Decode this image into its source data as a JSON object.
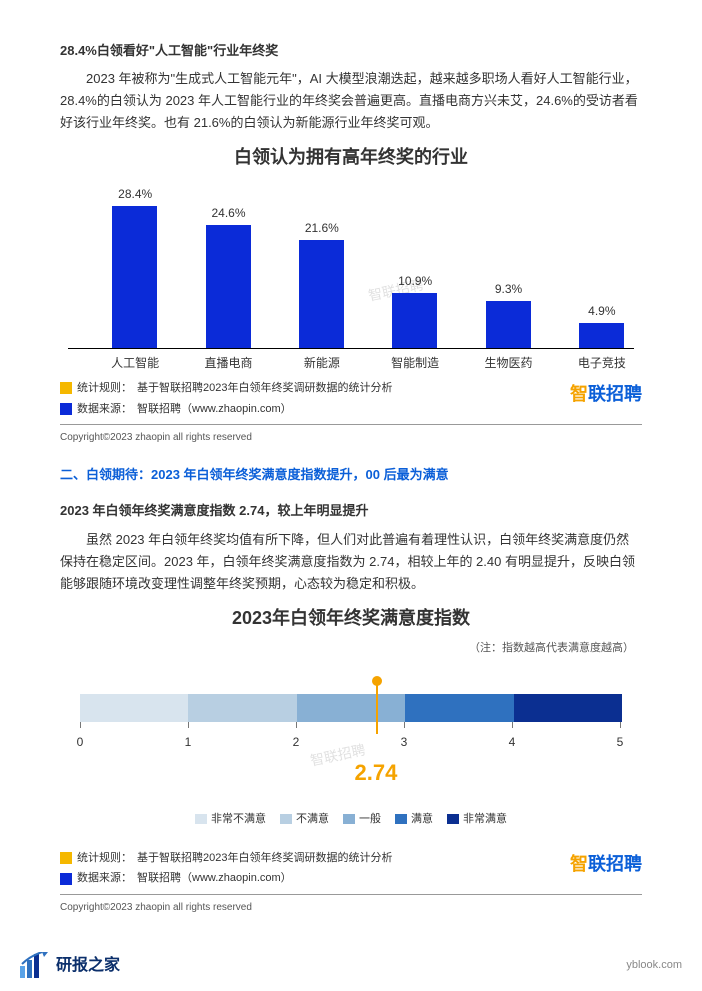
{
  "intro": {
    "heading": "28.4%白领看好\"人工智能\"行业年终奖",
    "para": "2023 年被称为\"生成式人工智能元年\"，AI 大模型浪潮迭起，越来越多职场人看好人工智能行业，28.4%的白领认为 2023 年人工智能行业的年终奖会普遍更高。直播电商方兴未艾，24.6%的受访者看好该行业年终奖。也有 21.6%的白领认为新能源行业年终奖可观。"
  },
  "bar_chart": {
    "title": "白领认为拥有高年终奖的行业",
    "type": "bar",
    "categories": [
      "人工智能",
      "直播电商",
      "新能源",
      "智能制造",
      "生物医药",
      "电子竞技"
    ],
    "values_pct": [
      28.4,
      24.6,
      21.6,
      10.9,
      9.3,
      4.9
    ],
    "value_labels": [
      "28.4%",
      "24.6%",
      "21.6%",
      "10.9%",
      "9.3%",
      "4.9%"
    ],
    "bar_color": "#0b2bd8",
    "ymax_pct": 30,
    "axis_color": "#000000",
    "watermark": "智联招聘"
  },
  "source": {
    "rule_label": "统计规则：",
    "rule_text": "基于智联招聘2023年白领年终奖调研数据的统计分析",
    "source_label": "数据来源：",
    "source_text": "智联招聘（www.zhaopin.com）",
    "rule_color": "#f5b800",
    "source_color": "#0b2bd8",
    "brand_zhi": "智",
    "brand_lian": "联招聘",
    "copyright": "Copyright©2023 zhaopin all rights reserved"
  },
  "section2": {
    "title": "二、白领期待：2023 年白领年终奖满意度指数提升，00 后最为满意",
    "sub_heading": "2023 年白领年终奖满意度指数 2.74，较上年明显提升",
    "para": "虽然 2023 年白领年终奖均值有所下降，但人们对此普遍有着理性认识，白领年终奖满意度仍然保持在稳定区间。2023 年，白领年终奖满意度指数为 2.74，相较上年的 2.40 有明显提升，反映白领能够跟随环境改变理性调整年终奖预期，心态较为稳定和积极。"
  },
  "gauge": {
    "title": "2023年白领年终奖满意度指数",
    "note": "（注：指数越高代表满意度越高）",
    "min": 0,
    "max": 5,
    "ticks": [
      0,
      1,
      2,
      3,
      4,
      5
    ],
    "value": 2.74,
    "value_label": "2.74",
    "segments": [
      {
        "label": "非常不满意",
        "color": "#d8e4ee"
      },
      {
        "label": "不满意",
        "color": "#b8cfe2"
      },
      {
        "label": "一般",
        "color": "#88b0d4"
      },
      {
        "label": "满意",
        "color": "#2f71bf"
      },
      {
        "label": "非常满意",
        "color": "#0b2f91"
      }
    ],
    "pointer_color": "#f5a300",
    "watermark": "智联招聘"
  },
  "footer": {
    "brand_text": "研报之家",
    "url": "yblook.com",
    "logo_colors": [
      "#5aa3e8",
      "#2f71bf",
      "#0b2f91"
    ]
  }
}
